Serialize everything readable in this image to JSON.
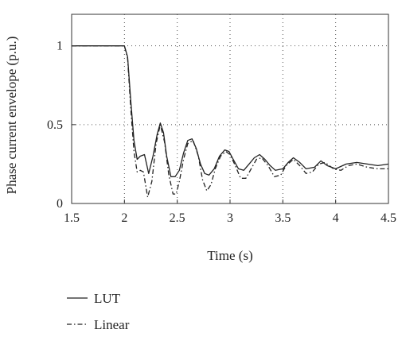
{
  "chart_data": {
    "type": "line",
    "title": "",
    "xlabel": "Time (s)",
    "ylabel": "Phase current envelope (p.u.)",
    "xlim": [
      1.5,
      4.5
    ],
    "ylim": [
      0,
      1.2
    ],
    "xticks": [
      1.5,
      2,
      2.5,
      3,
      3.5,
      4,
      4.5
    ],
    "xtick_labels": [
      "1.5",
      "2",
      "2.5",
      "3",
      "3.5",
      "4",
      "4.5"
    ],
    "yticks": [
      0,
      0.5,
      1
    ],
    "ytick_labels": [
      "0",
      "0.5",
      "1"
    ],
    "grid": "dotted",
    "legend_position": "bottom-left, below plot",
    "series": [
      {
        "name": "LUT",
        "style": "solid",
        "color": "#222222",
        "x": [
          1.5,
          2.0,
          2.03,
          2.06,
          2.09,
          2.12,
          2.15,
          2.19,
          2.23,
          2.27,
          2.31,
          2.34,
          2.37,
          2.4,
          2.44,
          2.48,
          2.52,
          2.56,
          2.6,
          2.64,
          2.68,
          2.72,
          2.76,
          2.8,
          2.85,
          2.9,
          2.95,
          2.99,
          3.03,
          3.08,
          3.13,
          3.18,
          3.23,
          3.28,
          3.33,
          3.38,
          3.43,
          3.5,
          3.55,
          3.6,
          3.66,
          3.72,
          3.8,
          3.86,
          3.92,
          4.0,
          4.1,
          4.2,
          4.3,
          4.4,
          4.5
        ],
        "y": [
          1.0,
          1.0,
          0.93,
          0.65,
          0.4,
          0.28,
          0.3,
          0.31,
          0.19,
          0.3,
          0.44,
          0.51,
          0.45,
          0.3,
          0.17,
          0.17,
          0.21,
          0.32,
          0.4,
          0.41,
          0.35,
          0.25,
          0.19,
          0.18,
          0.22,
          0.3,
          0.34,
          0.33,
          0.28,
          0.22,
          0.21,
          0.25,
          0.29,
          0.31,
          0.28,
          0.24,
          0.21,
          0.22,
          0.26,
          0.29,
          0.26,
          0.22,
          0.23,
          0.27,
          0.24,
          0.22,
          0.25,
          0.26,
          0.25,
          0.24,
          0.25
        ]
      },
      {
        "name": "Linear",
        "style": "dash-dot",
        "color": "#222222",
        "x": [
          1.5,
          2.0,
          2.03,
          2.06,
          2.09,
          2.12,
          2.15,
          2.18,
          2.22,
          2.26,
          2.3,
          2.34,
          2.38,
          2.42,
          2.46,
          2.49,
          2.52,
          2.56,
          2.6,
          2.65,
          2.7,
          2.74,
          2.78,
          2.82,
          2.86,
          2.91,
          2.96,
          3.0,
          3.05,
          3.1,
          3.15,
          3.2,
          3.25,
          3.3,
          3.36,
          3.42,
          3.48,
          3.53,
          3.6,
          3.66,
          3.72,
          3.78,
          3.84,
          3.9,
          3.98,
          4.05,
          4.12,
          4.2,
          4.3,
          4.4,
          4.5
        ],
        "y": [
          1.0,
          1.0,
          0.92,
          0.6,
          0.33,
          0.2,
          0.21,
          0.2,
          0.04,
          0.14,
          0.38,
          0.5,
          0.39,
          0.18,
          0.06,
          0.06,
          0.14,
          0.28,
          0.38,
          0.4,
          0.3,
          0.15,
          0.08,
          0.12,
          0.22,
          0.3,
          0.33,
          0.31,
          0.24,
          0.16,
          0.16,
          0.22,
          0.28,
          0.29,
          0.24,
          0.17,
          0.18,
          0.24,
          0.28,
          0.24,
          0.19,
          0.2,
          0.25,
          0.26,
          0.22,
          0.21,
          0.24,
          0.25,
          0.23,
          0.22,
          0.22
        ]
      }
    ]
  }
}
